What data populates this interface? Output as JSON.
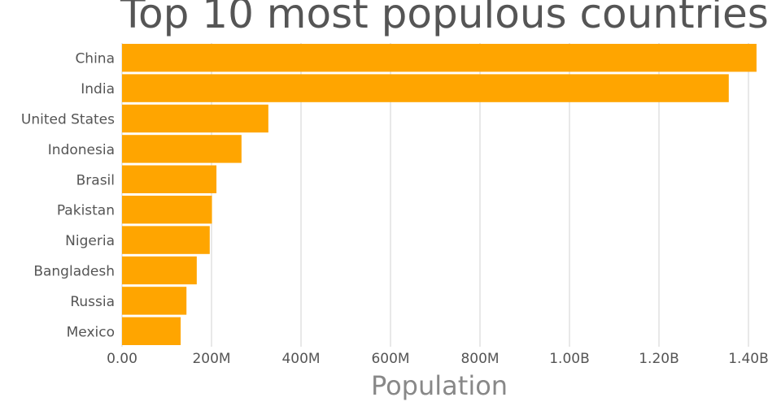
{
  "chart_data": {
    "type": "bar",
    "orientation": "horizontal",
    "title": "Top 10 most populous countries",
    "xlabel": "Population",
    "ylabel": "",
    "categories": [
      "China",
      "India",
      "United States",
      "Indonesia",
      "Brasil",
      "Pakistan",
      "Nigeria",
      "Bangladesh",
      "Russia",
      "Mexico"
    ],
    "values": [
      1418000000,
      1356000000,
      327000000,
      267000000,
      211000000,
      201000000,
      196000000,
      167000000,
      144000000,
      131000000
    ],
    "xlim": [
      0,
      1450000000
    ],
    "xticks": [
      0,
      200000000,
      400000000,
      600000000,
      800000000,
      1000000000,
      1200000000,
      1400000000
    ],
    "xtick_labels": [
      "0.00",
      "200M",
      "400M",
      "600M",
      "800M",
      "1.00B",
      "1.20B",
      "1.40B"
    ],
    "grid": true,
    "bar_color": "#FFA500"
  }
}
